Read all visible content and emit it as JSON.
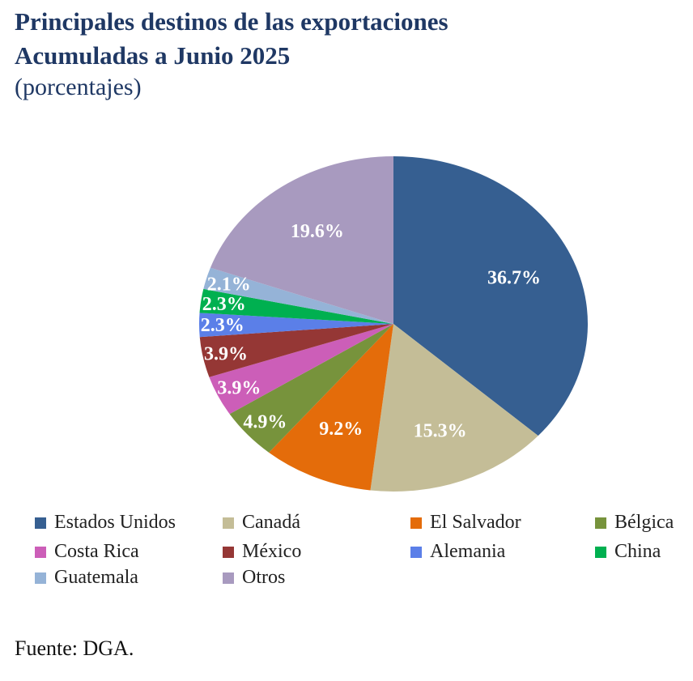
{
  "title_line1": "Principales destinos de las exportaciones",
  "title_line2": "Acumuladas a Junio 2025",
  "subtitle": "(porcentajes)",
  "source": "Fuente: DGA.",
  "chart_data": {
    "type": "pie",
    "title": "Principales destinos de las exportaciones Acumuladas a Junio 2025",
    "subtitle": "(porcentajes)",
    "legend_placement": "bottom",
    "categories": [
      "Estados Unidos",
      "Canadá",
      "El Salvador",
      "Bélgica",
      "Costa Rica",
      "México",
      "Alemania",
      "China",
      "Guatemala",
      "Otros"
    ],
    "values": [
      36.7,
      15.3,
      9.2,
      4.9,
      3.9,
      3.9,
      2.3,
      2.3,
      2.1,
      19.6
    ],
    "labels": [
      "36.7%",
      "15.3%",
      "9.2%",
      "4.9%",
      "3.9%",
      "3.9%",
      "2.3%",
      "2.3%",
      "2.1%",
      "19.6%"
    ],
    "colors": [
      "#365f91",
      "#c4bd97",
      "#e46c0a",
      "#77933c",
      "#cc5eb8",
      "#953735",
      "#5b7fe8",
      "#00b050",
      "#95b3d7",
      "#a89abf"
    ],
    "unit": "%"
  }
}
